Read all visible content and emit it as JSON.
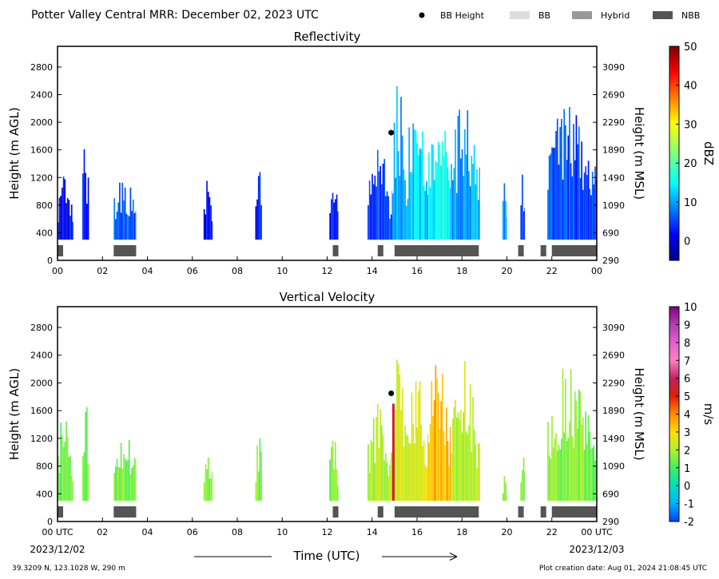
{
  "header": {
    "title": "Potter Valley Central MRR:  December 02, 2023 UTC",
    "legend": [
      {
        "label": "BB Height",
        "kind": "dot",
        "color": "#000000"
      },
      {
        "label": "BB",
        "kind": "box",
        "color": "#dddddd"
      },
      {
        "label": "Hybrid",
        "kind": "box",
        "color": "#999999"
      },
      {
        "label": "NBB",
        "kind": "box",
        "color": "#555555"
      }
    ]
  },
  "footer": {
    "location": "39.3209 N, 123.1028 W, 290 m",
    "created": "Plot creation date: Aug 01, 2024 21:08:45 UTC"
  },
  "chart_data": [
    {
      "type": "heatmap",
      "title": "Reflectivity",
      "ylabel": "Height (m AGL)",
      "ylabel_right": "Height (m MSL)",
      "ylim": [
        0,
        3100
      ],
      "xlim": [
        0,
        24
      ],
      "x_ticks": [
        "00",
        "02",
        "04",
        "06",
        "08",
        "10",
        "12",
        "14",
        "16",
        "18",
        "20",
        "22",
        "00"
      ],
      "y_ticks": [
        0,
        400,
        800,
        1200,
        1600,
        2000,
        2400,
        2800
      ],
      "y_ticks_right": [
        "290",
        "690",
        "1090",
        "1490",
        "1890",
        "2290",
        "2690",
        "3090"
      ],
      "colorbar": {
        "label": "dBZ",
        "min": -5,
        "max": 50,
        "ticks": [
          "0",
          "10",
          "20",
          "30",
          "40",
          "50"
        ],
        "tick_values": [
          0,
          10,
          20,
          30,
          40,
          50
        ]
      },
      "bb_height": [
        {
          "hour": 14.85,
          "height": 1850
        }
      ],
      "bb_type_bar": [
        {
          "start": 0.0,
          "end": 0.25,
          "type": "NBB"
        },
        {
          "start": 2.5,
          "end": 3.5,
          "type": "NBB"
        },
        {
          "start": 12.25,
          "end": 12.5,
          "type": "NBB"
        },
        {
          "start": 14.25,
          "end": 14.5,
          "type": "NBB"
        },
        {
          "start": 15.0,
          "end": 18.75,
          "type": "NBB"
        },
        {
          "start": 20.5,
          "end": 20.75,
          "type": "NBB"
        },
        {
          "start": 21.5,
          "end": 21.75,
          "type": "NBB"
        },
        {
          "start": 22.0,
          "end": 24.0,
          "type": "NBB"
        }
      ],
      "echo_columns": [
        {
          "start": 0.0,
          "end": 0.7,
          "top": 1300,
          "value": 2
        },
        {
          "start": 1.1,
          "end": 1.4,
          "top": 1900,
          "value": 3
        },
        {
          "start": 2.5,
          "end": 3.5,
          "top": 1400,
          "value": 6
        },
        {
          "start": 6.5,
          "end": 6.9,
          "top": 1200,
          "value": 2
        },
        {
          "start": 8.8,
          "end": 9.1,
          "top": 1400,
          "value": 2
        },
        {
          "start": 12.1,
          "end": 12.5,
          "top": 1300,
          "value": 2
        },
        {
          "start": 13.8,
          "end": 14.9,
          "top": 1800,
          "value": 5
        },
        {
          "start": 14.9,
          "end": 15.5,
          "top": 2700,
          "value": 10
        },
        {
          "start": 15.5,
          "end": 16.5,
          "top": 2500,
          "value": 12
        },
        {
          "start": 16.5,
          "end": 17.5,
          "top": 2500,
          "value": 15
        },
        {
          "start": 17.5,
          "end": 18.8,
          "top": 2400,
          "value": 10
        },
        {
          "start": 19.8,
          "end": 20.0,
          "top": 1500,
          "value": 10
        },
        {
          "start": 20.6,
          "end": 20.8,
          "top": 1500,
          "value": 3
        },
        {
          "start": 21.8,
          "end": 24.0,
          "top": 2300,
          "value": 5
        }
      ]
    },
    {
      "type": "heatmap",
      "title": "Vertical Velocity",
      "ylabel": "Height (m AGL)",
      "ylabel_right": "Height (m MSL)",
      "xlabel": "Time (UTC)",
      "ylim": [
        0,
        3100
      ],
      "xlim": [
        0,
        24
      ],
      "x_ticks": [
        "00 UTC",
        "02",
        "04",
        "06",
        "08",
        "10",
        "12",
        "14",
        "16",
        "18",
        "20",
        "22",
        "00 UTC"
      ],
      "x_dates": [
        "2023/12/02",
        "2023/12/03"
      ],
      "y_ticks": [
        0,
        400,
        800,
        1200,
        1600,
        2000,
        2400,
        2800
      ],
      "y_ticks_right": [
        "290",
        "690",
        "1090",
        "1490",
        "1890",
        "2290",
        "2690",
        "3090"
      ],
      "colorbar": {
        "label": "m/s",
        "min": -2,
        "max": 10,
        "ticks": [
          "-2",
          "-1",
          "0",
          "1",
          "2",
          "3",
          "4",
          "5",
          "6",
          "7",
          "8",
          "9",
          "10"
        ],
        "tick_values": [
          -2,
          -1,
          0,
          1,
          2,
          3,
          4,
          5,
          6,
          7,
          8,
          9,
          10
        ]
      },
      "bb_height": [
        {
          "hour": 14.85,
          "height": 1850
        }
      ],
      "bb_type_bar": [
        {
          "start": 0.0,
          "end": 0.25,
          "type": "NBB"
        },
        {
          "start": 2.5,
          "end": 3.5,
          "type": "NBB"
        },
        {
          "start": 12.25,
          "end": 12.5,
          "type": "NBB"
        },
        {
          "start": 14.25,
          "end": 14.5,
          "type": "NBB"
        },
        {
          "start": 15.0,
          "end": 18.75,
          "type": "NBB"
        },
        {
          "start": 20.5,
          "end": 20.75,
          "type": "NBB"
        },
        {
          "start": 21.5,
          "end": 21.75,
          "type": "NBB"
        },
        {
          "start": 22.0,
          "end": 24.0,
          "type": "NBB"
        }
      ],
      "echo_columns": [
        {
          "start": 0.0,
          "end": 0.7,
          "top": 1700,
          "value": 1.5
        },
        {
          "start": 1.1,
          "end": 1.4,
          "top": 1900,
          "value": 1.5
        },
        {
          "start": 2.5,
          "end": 3.5,
          "top": 1450,
          "value": 1.5
        },
        {
          "start": 6.5,
          "end": 6.9,
          "top": 1200,
          "value": 1.5
        },
        {
          "start": 8.8,
          "end": 9.1,
          "top": 1400,
          "value": 1.5
        },
        {
          "start": 12.1,
          "end": 12.5,
          "top": 1300,
          "value": 1.5
        },
        {
          "start": 13.8,
          "end": 14.9,
          "top": 1800,
          "value": 2
        },
        {
          "start": 14.9,
          "end": 15.5,
          "top": 2700,
          "value": 2.5
        },
        {
          "start": 15.5,
          "end": 16.5,
          "top": 2500,
          "value": 2.5
        },
        {
          "start": 16.5,
          "end": 17.5,
          "top": 2500,
          "value": 3.5
        },
        {
          "start": 17.5,
          "end": 18.8,
          "top": 2400,
          "value": 2
        },
        {
          "start": 19.8,
          "end": 20.0,
          "top": 700,
          "value": 1.5
        },
        {
          "start": 20.6,
          "end": 20.8,
          "top": 1500,
          "value": 1.5
        },
        {
          "start": 21.8,
          "end": 24.0,
          "top": 2300,
          "value": 1.5
        }
      ],
      "updraft_streak": {
        "hour": 14.95,
        "top": 1700,
        "value": 5.5
      }
    }
  ]
}
